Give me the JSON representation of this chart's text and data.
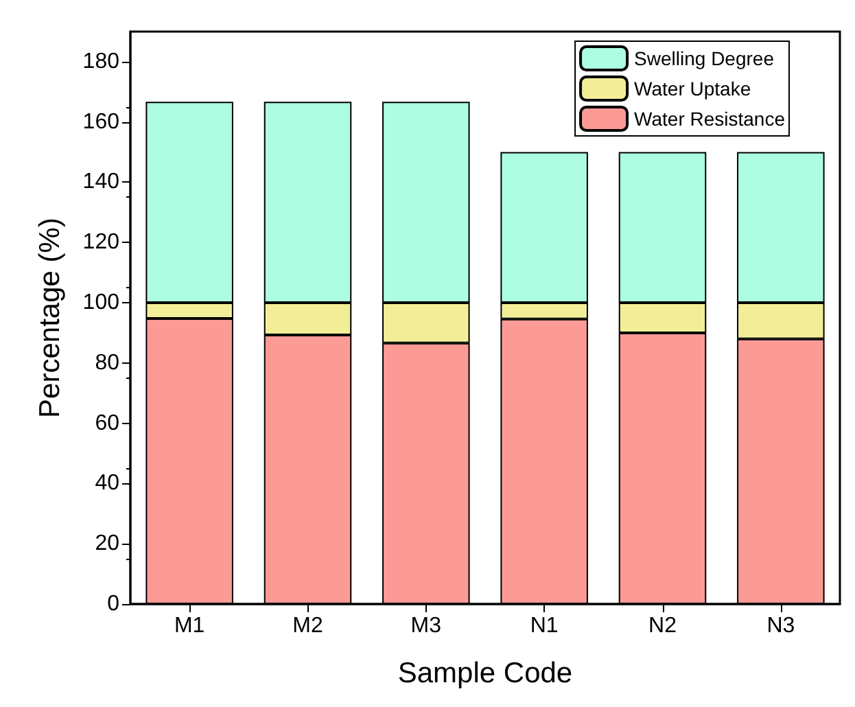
{
  "chart_data": {
    "type": "bar",
    "stacked": true,
    "xlabel": "Sample Code",
    "ylabel": "Percentage (%)",
    "categories": [
      "M1",
      "M2",
      "M3",
      "N1",
      "N2",
      "N3"
    ],
    "series": [
      {
        "name": "Water Resistance",
        "color": "#fc9a96",
        "values": [
          94.8,
          89.3,
          86.6,
          94.6,
          90,
          88
        ]
      },
      {
        "name": "Water Uptake",
        "color": "#f2ee98",
        "values": [
          5.2,
          10.7,
          13.4,
          5.4,
          10,
          12
        ]
      },
      {
        "name": "Swelling Degree",
        "color": "#adfde2",
        "values": [
          66.7,
          66.7,
          66.7,
          50,
          50,
          50
        ]
      }
    ],
    "ylim": [
      0,
      190
    ],
    "yticks": [
      0,
      20,
      40,
      60,
      80,
      100,
      120,
      140,
      160,
      180
    ],
    "grid": false,
    "legend": "top right"
  }
}
